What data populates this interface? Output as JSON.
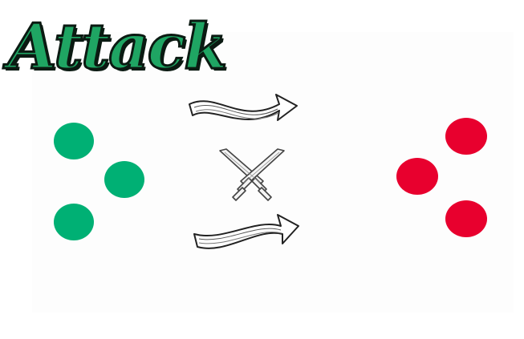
{
  "title": "Attack",
  "colors": {
    "title_fill": "#1fa563",
    "title_outline": "#0b1a12",
    "ally": "#00b074",
    "enemy": "#e8002e"
  },
  "icons": {
    "arrows": [
      "curved-arrow-right-icon",
      "curved-arrow-right-icon"
    ],
    "center": "crossed-swords-icon"
  },
  "groups": {
    "ally_count": 3,
    "enemy_count": 3
  }
}
